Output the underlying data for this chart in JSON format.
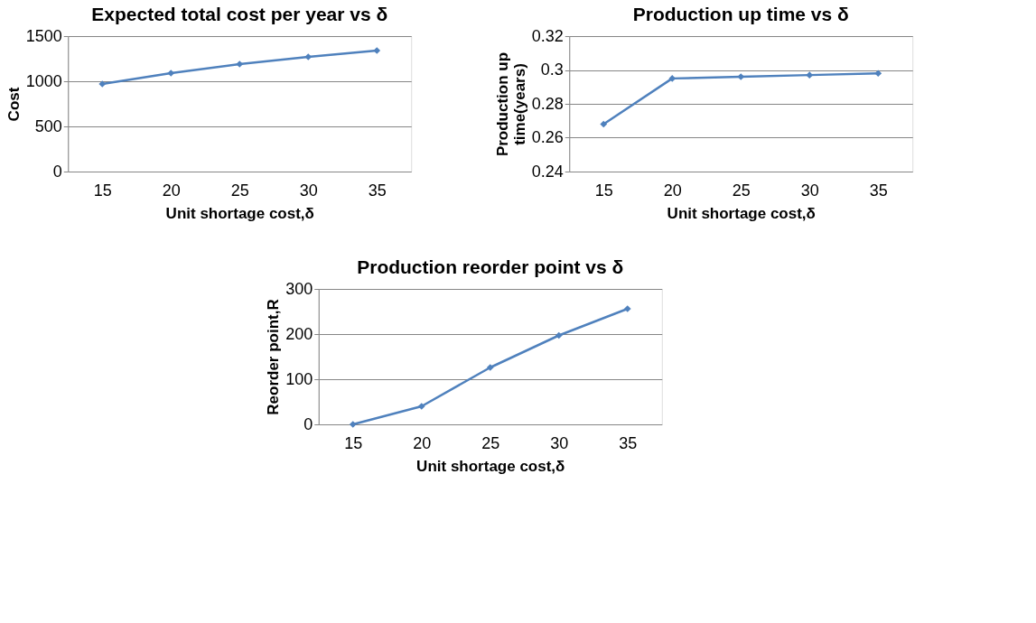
{
  "chart_data": [
    {
      "type": "line",
      "title": "Expected total cost per year vs δ",
      "xlabel": "Unit shortage cost,δ",
      "ylabel": "Cost",
      "categories": [
        "15",
        "20",
        "25",
        "30",
        "35"
      ],
      "series": [
        {
          "color": "#4f81bd",
          "values": [
            970,
            1090,
            1190,
            1270,
            1340
          ]
        }
      ],
      "ylim": [
        0,
        1500
      ],
      "yticks": [
        0,
        500,
        1000,
        1500
      ],
      "grid": "y",
      "marker": "diamond",
      "line_style": "solid"
    },
    {
      "type": "line",
      "title": "Production up time vs δ",
      "xlabel": "Unit shortage cost,δ",
      "ylabel": "Production up time(years)",
      "categories": [
        "15",
        "20",
        "25",
        "30",
        "35"
      ],
      "series": [
        {
          "color": "#4f81bd",
          "values": [
            0.268,
            0.295,
            0.296,
            0.297,
            0.298
          ]
        }
      ],
      "ylim": [
        0.24,
        0.32
      ],
      "yticks": [
        0.24,
        0.26,
        0.28,
        0.3,
        0.32
      ],
      "grid": "y",
      "marker": "diamond",
      "line_style": "solid"
    },
    {
      "type": "line",
      "title": "Production reorder point vs δ",
      "xlabel": "Unit shortage cost,δ",
      "ylabel": "Reorder point,R",
      "categories": [
        "15",
        "20",
        "25",
        "30",
        "35"
      ],
      "series": [
        {
          "color": "#4f81bd",
          "values": [
            0,
            40,
            126,
            197,
            256
          ]
        }
      ],
      "ylim": [
        0,
        300
      ],
      "yticks": [
        0,
        100,
        200,
        300
      ],
      "grid": "y",
      "marker": "diamond",
      "line_style": "solid"
    }
  ]
}
